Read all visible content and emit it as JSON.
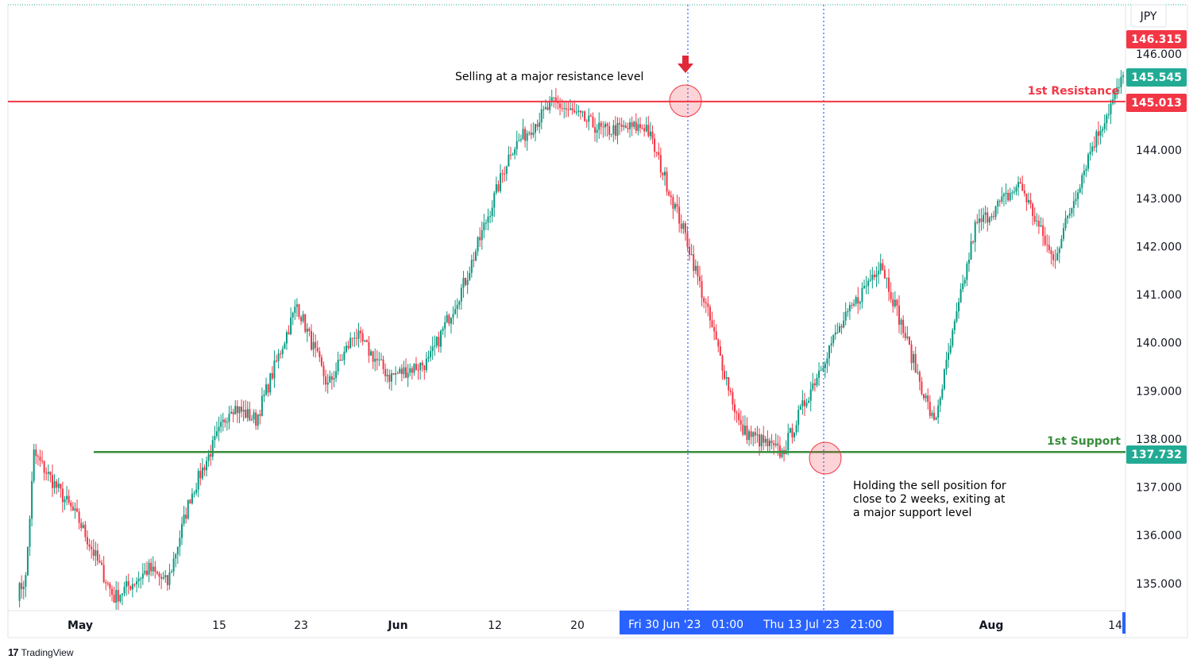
{
  "chart_data": {
    "type": "candlestick",
    "currency": "JPY",
    "y_tick_labels": [
      "135.000",
      "136.000",
      "137.000",
      "138.000",
      "139.000",
      "140.000",
      "141.000",
      "142.000",
      "143.000",
      "144.000",
      "145.000",
      "146.000"
    ],
    "ylim": [
      134.7,
      146.5
    ],
    "x_tick_labels": [
      {
        "label": "May",
        "bold": true
      },
      {
        "label": "15",
        "bold": false
      },
      {
        "label": "23",
        "bold": false
      },
      {
        "label": "Jun",
        "bold": true
      },
      {
        "label": "12",
        "bold": false
      },
      {
        "label": "20",
        "bold": false
      },
      {
        "label": "Aug",
        "bold": true
      },
      {
        "label": "14",
        "bold": false
      }
    ],
    "price_badges": [
      {
        "value": "146.315",
        "color": "#f23645"
      },
      {
        "value": "145.545",
        "color": "#22ab94"
      },
      {
        "value": "145.013",
        "color": "#f23645"
      },
      {
        "value": "137.732",
        "color": "#22ab94"
      }
    ],
    "levels": [
      {
        "name": "1st Resistance",
        "value": 145.013,
        "color": "#f23645"
      },
      {
        "name": "1st Support",
        "value": 137.732,
        "color": "#388e3c"
      }
    ],
    "time_labels": [
      "Fri 30 Jun '23   01:00",
      "Thu 13 Jul '23   21:00"
    ],
    "annotations": {
      "sell": "Selling at a major resistance level",
      "hold": [
        "Holding the sell position for",
        "close to 2 weeks, exiting at",
        "a major support level"
      ]
    },
    "path": [
      [
        0,
        134.8
      ],
      [
        4,
        135.1
      ],
      [
        8,
        137.7
      ],
      [
        30,
        136.3
      ],
      [
        47,
        134.7
      ],
      [
        64,
        135.3
      ],
      [
        73,
        135.0
      ],
      [
        84,
        136.8
      ],
      [
        104,
        138.7
      ],
      [
        116,
        138.4
      ],
      [
        136,
        140.8
      ],
      [
        151,
        139.1
      ],
      [
        164,
        140.2
      ],
      [
        181,
        139.3
      ],
      [
        200,
        139.6
      ],
      [
        218,
        141.3
      ],
      [
        240,
        144.0
      ],
      [
        261,
        145.0
      ],
      [
        285,
        144.4
      ],
      [
        306,
        144.5
      ],
      [
        326,
        142.1
      ],
      [
        352,
        138.2
      ],
      [
        372,
        137.7
      ],
      [
        396,
        140.0
      ],
      [
        420,
        141.7
      ],
      [
        446,
        138.3
      ],
      [
        466,
        142.4
      ],
      [
        488,
        143.3
      ],
      [
        504,
        141.7
      ],
      [
        522,
        144.0
      ],
      [
        538,
        145.5
      ]
    ],
    "up_color": "#089981",
    "down_color": "#f23645"
  },
  "branding": {
    "name": "TradingView"
  }
}
